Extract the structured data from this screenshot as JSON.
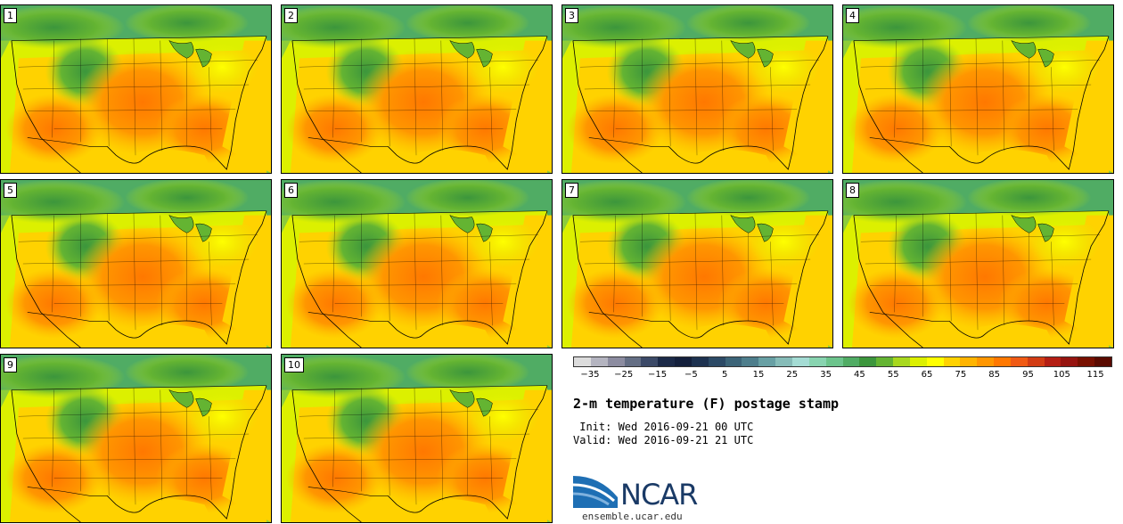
{
  "panels": [
    "1",
    "2",
    "3",
    "4",
    "5",
    "6",
    "7",
    "8",
    "9",
    "10"
  ],
  "colorbar": {
    "colors": [
      "#dcdcdc",
      "#b4b4c0",
      "#8c8ca0",
      "#646e84",
      "#3c4a68",
      "#1c2a48",
      "#14203c",
      "#1e3250",
      "#2c4a66",
      "#3c6478",
      "#4e7e8c",
      "#68a0a4",
      "#86bcb8",
      "#a4dcd4",
      "#88d4b0",
      "#6cc48c",
      "#50ac64",
      "#3c963c",
      "#64b432",
      "#a8d81e",
      "#dcf000",
      "#ffff00",
      "#ffd200",
      "#ffb400",
      "#ff9600",
      "#ff7800",
      "#f05a14",
      "#d23c14",
      "#b41e14",
      "#961410",
      "#781000",
      "#5a0a00"
    ],
    "ticks": [
      "−35",
      "−25",
      "−15",
      "−5",
      "5",
      "15",
      "25",
      "35",
      "45",
      "55",
      "65",
      "75",
      "85",
      "95",
      "105",
      "115"
    ],
    "tick_values": [
      -35,
      -25,
      -15,
      -5,
      5,
      15,
      25,
      35,
      45,
      55,
      65,
      75,
      85,
      95,
      105,
      115
    ],
    "min": -40,
    "max": 120
  },
  "title": "2-m temperature (F) postage stamp",
  "init": " Init: Wed 2016-09-21 00 UTC",
  "valid": "Valid: Wed 2016-09-21 21 UTC",
  "logo": {
    "word": "NCAR",
    "url": "ensemble.ucar.edu"
  }
}
